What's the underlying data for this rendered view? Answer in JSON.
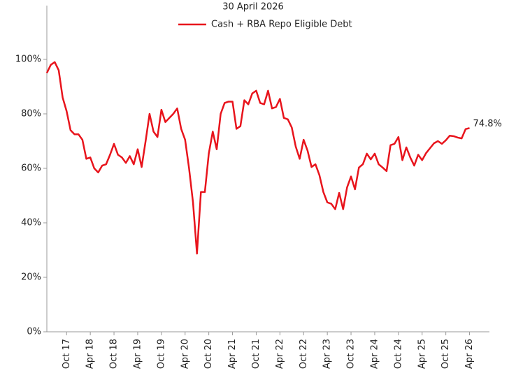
{
  "chart_data": {
    "type": "line",
    "subtitle": "30 April 2026",
    "categories": [
      null,
      null,
      null,
      null,
      null,
      "Oct 17",
      null,
      null,
      null,
      null,
      null,
      "Apr 18",
      null,
      null,
      null,
      null,
      null,
      "Oct 18",
      null,
      null,
      null,
      null,
      null,
      "Apr 19",
      null,
      null,
      null,
      null,
      null,
      "Oct 19",
      null,
      null,
      null,
      null,
      null,
      "Apr 20",
      null,
      null,
      null,
      null,
      null,
      "Oct 20",
      null,
      null,
      null,
      null,
      null,
      "Apr 21",
      null,
      null,
      null,
      null,
      null,
      "Oct 21",
      null,
      null,
      null,
      null,
      null,
      "Apr 22",
      null,
      null,
      null,
      null,
      null,
      "Oct 22",
      null,
      null,
      null,
      null,
      null,
      "Apr 23",
      null,
      null,
      null,
      null,
      null,
      "Oct 23",
      null,
      null,
      null,
      null,
      null,
      "Apr 24",
      null,
      null,
      null,
      null,
      null,
      "Oct 24",
      null,
      null,
      null,
      null,
      null,
      "Apr 25",
      null,
      null,
      null,
      null,
      null,
      "Oct 25",
      null,
      null,
      null,
      null,
      null,
      "Apr 26"
    ],
    "series": [
      {
        "name": "Cash + RBA Repo Eligible Debt",
        "color": "#e8141c",
        "values": [
          95,
          98,
          99,
          96,
          86,
          81,
          74,
          72.5,
          72.5,
          70.5,
          63.5,
          64,
          60,
          58.5,
          61,
          61.5,
          65,
          69,
          65,
          64,
          62,
          64.5,
          61.5,
          67,
          60.5,
          70,
          80,
          73.5,
          71.5,
          81.5,
          77,
          78.5,
          80,
          82,
          74.5,
          70.5,
          60,
          47.5,
          28.7,
          51.3,
          51.3,
          65.5,
          73.5,
          67,
          80,
          84,
          84.5,
          84.5,
          74.5,
          75.5,
          85,
          83.5,
          87.5,
          88.5,
          84,
          83.5,
          88.5,
          82,
          82.5,
          85.5,
          78.5,
          78,
          75,
          68,
          63.5,
          70.5,
          66.5,
          60.5,
          61.5,
          57.5,
          51.3,
          47.5,
          47,
          45,
          51,
          45,
          53,
          57,
          52.3,
          60.3,
          61.5,
          65.4,
          63.3,
          65.4,
          61.5,
          60.3,
          59,
          68.5,
          69,
          71.5,
          63,
          67.7,
          64,
          61,
          65,
          63,
          65.6,
          67.4,
          69.2,
          70,
          69,
          70.3,
          72,
          71.8,
          71.3,
          71,
          74.4,
          74.8
        ],
        "value_labels": [
          null,
          null,
          null,
          null,
          null,
          null,
          null,
          null,
          null,
          null,
          null,
          null,
          null,
          null,
          null,
          null,
          null,
          null,
          null,
          null,
          null,
          null,
          null,
          null,
          null,
          null,
          null,
          null,
          null,
          null,
          null,
          null,
          null,
          null,
          null,
          null,
          null,
          null,
          null,
          null,
          null,
          null,
          null,
          null,
          null,
          null,
          null,
          null,
          null,
          null,
          null,
          null,
          null,
          null,
          null,
          null,
          null,
          null,
          null,
          null,
          null,
          null,
          null,
          null,
          null,
          null,
          null,
          null,
          null,
          null,
          null,
          null,
          null,
          null,
          null,
          null,
          null,
          null,
          null,
          null,
          null,
          null,
          null,
          null,
          null,
          null,
          null,
          null,
          null,
          null,
          null,
          null,
          null,
          null,
          null,
          null,
          null,
          null,
          null,
          null,
          null,
          null,
          null,
          null,
          null,
          null,
          null,
          "74.8%"
        ]
      }
    ],
    "ylim": [
      0,
      120
    ],
    "yticks": [
      {
        "value": 0,
        "label": "0%"
      },
      {
        "value": 20,
        "label": "20%"
      },
      {
        "value": 40,
        "label": "40%"
      },
      {
        "value": 60,
        "label": "60%"
      },
      {
        "value": 80,
        "label": "80%"
      },
      {
        "value": 100,
        "label": "100%"
      }
    ],
    "grid": false
  }
}
